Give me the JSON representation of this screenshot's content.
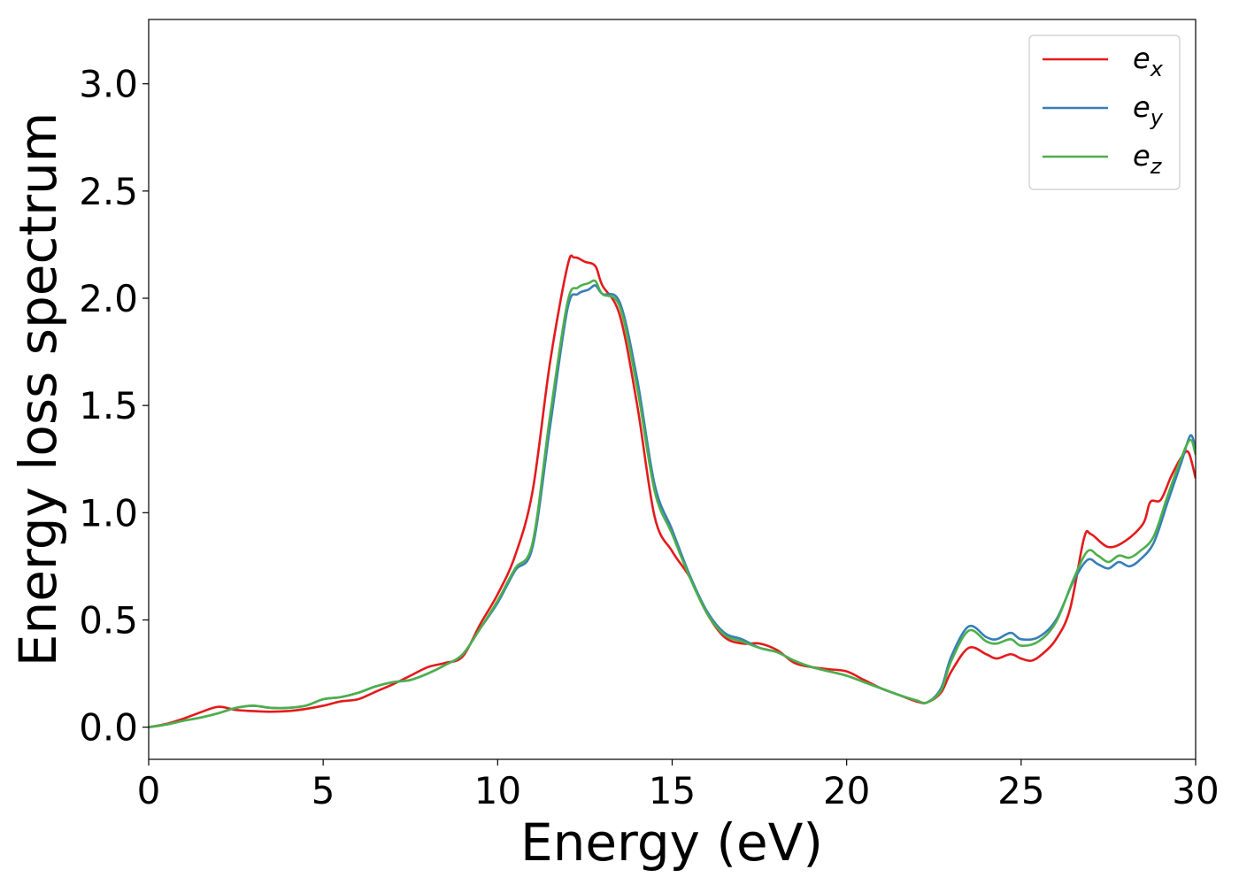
{
  "chart_data": {
    "type": "line",
    "title": "",
    "xlabel": "Energy (eV)",
    "ylabel": "Energy loss spectrum",
    "xlim": [
      0,
      30
    ],
    "ylim": [
      -0.15,
      3.3
    ],
    "xticks": [
      0,
      5,
      10,
      15,
      20,
      25,
      30
    ],
    "xtick_labels": [
      "0",
      "5",
      "10",
      "15",
      "20",
      "25",
      "30"
    ],
    "yticks": [
      0.0,
      0.5,
      1.0,
      1.5,
      2.0,
      2.5,
      3.0
    ],
    "ytick_labels": [
      "0.0",
      "0.5",
      "1.0",
      "1.5",
      "2.0",
      "2.5",
      "3.0"
    ],
    "grid": false,
    "legend_position": "top-right",
    "series": [
      {
        "name": "e_x",
        "legend_base": "e",
        "legend_sub": "x",
        "color": "#e41a1c",
        "points": [
          [
            0,
            0
          ],
          [
            0.5,
            0.015
          ],
          [
            1,
            0.04
          ],
          [
            1.5,
            0.07
          ],
          [
            2,
            0.095
          ],
          [
            2.5,
            0.08
          ],
          [
            3,
            0.075
          ],
          [
            3.5,
            0.072
          ],
          [
            4,
            0.075
          ],
          [
            4.5,
            0.085
          ],
          [
            5,
            0.1
          ],
          [
            5.5,
            0.12
          ],
          [
            6,
            0.13
          ],
          [
            6.5,
            0.165
          ],
          [
            7,
            0.2
          ],
          [
            7.5,
            0.24
          ],
          [
            8,
            0.28
          ],
          [
            8.5,
            0.3
          ],
          [
            9,
            0.33
          ],
          [
            9.5,
            0.48
          ],
          [
            10,
            0.62
          ],
          [
            10.5,
            0.8
          ],
          [
            11,
            1.1
          ],
          [
            11.5,
            1.7
          ],
          [
            12,
            2.15
          ],
          [
            12.2,
            2.19
          ],
          [
            12.5,
            2.17
          ],
          [
            12.8,
            2.15
          ],
          [
            13,
            2.06
          ],
          [
            13.5,
            1.92
          ],
          [
            14,
            1.5
          ],
          [
            14.5,
            0.98
          ],
          [
            15,
            0.82
          ],
          [
            15.5,
            0.7
          ],
          [
            16,
            0.53
          ],
          [
            16.5,
            0.42
          ],
          [
            17,
            0.39
          ],
          [
            17.5,
            0.39
          ],
          [
            18,
            0.36
          ],
          [
            18.5,
            0.3
          ],
          [
            19,
            0.28
          ],
          [
            19.5,
            0.27
          ],
          [
            20,
            0.26
          ],
          [
            20.5,
            0.22
          ],
          [
            21,
            0.18
          ],
          [
            21.5,
            0.15
          ],
          [
            22,
            0.12
          ],
          [
            22.3,
            0.115
          ],
          [
            22.7,
            0.16
          ],
          [
            23,
            0.26
          ],
          [
            23.5,
            0.37
          ],
          [
            24,
            0.34
          ],
          [
            24.3,
            0.32
          ],
          [
            24.7,
            0.34
          ],
          [
            25,
            0.32
          ],
          [
            25.3,
            0.31
          ],
          [
            25.6,
            0.34
          ],
          [
            26,
            0.41
          ],
          [
            26.4,
            0.55
          ],
          [
            26.8,
            0.88
          ],
          [
            27,
            0.9
          ],
          [
            27.5,
            0.84
          ],
          [
            28,
            0.87
          ],
          [
            28.5,
            0.95
          ],
          [
            28.7,
            1.05
          ],
          [
            29,
            1.06
          ],
          [
            29.3,
            1.17
          ],
          [
            29.6,
            1.26
          ],
          [
            29.8,
            1.28
          ],
          [
            30,
            1.16
          ]
        ]
      },
      {
        "name": "e_y",
        "legend_base": "e",
        "legend_sub": "y",
        "color": "#377eb8",
        "points": [
          [
            0,
            0
          ],
          [
            0.5,
            0.012
          ],
          [
            1,
            0.03
          ],
          [
            1.5,
            0.045
          ],
          [
            2,
            0.065
          ],
          [
            2.5,
            0.09
          ],
          [
            3,
            0.1
          ],
          [
            3.5,
            0.09
          ],
          [
            4,
            0.09
          ],
          [
            4.5,
            0.1
          ],
          [
            5,
            0.13
          ],
          [
            5.5,
            0.14
          ],
          [
            6,
            0.16
          ],
          [
            6.5,
            0.19
          ],
          [
            7,
            0.21
          ],
          [
            7.5,
            0.22
          ],
          [
            8,
            0.25
          ],
          [
            8.5,
            0.29
          ],
          [
            9,
            0.34
          ],
          [
            9.5,
            0.46
          ],
          [
            10,
            0.58
          ],
          [
            10.5,
            0.73
          ],
          [
            11,
            0.84
          ],
          [
            11.5,
            1.4
          ],
          [
            12,
            1.95
          ],
          [
            12.3,
            2.02
          ],
          [
            12.6,
            2.04
          ],
          [
            12.8,
            2.06
          ],
          [
            13,
            2.02
          ],
          [
            13.5,
            1.98
          ],
          [
            14,
            1.62
          ],
          [
            14.5,
            1.13
          ],
          [
            15,
            0.92
          ],
          [
            15.5,
            0.71
          ],
          [
            16,
            0.54
          ],
          [
            16.5,
            0.44
          ],
          [
            17,
            0.41
          ],
          [
            17.5,
            0.37
          ],
          [
            18,
            0.35
          ],
          [
            18.5,
            0.31
          ],
          [
            19,
            0.28
          ],
          [
            19.5,
            0.26
          ],
          [
            20,
            0.24
          ],
          [
            20.5,
            0.21
          ],
          [
            21,
            0.18
          ],
          [
            21.5,
            0.15
          ],
          [
            22,
            0.125
          ],
          [
            22.3,
            0.115
          ],
          [
            22.7,
            0.18
          ],
          [
            23,
            0.33
          ],
          [
            23.5,
            0.47
          ],
          [
            24,
            0.42
          ],
          [
            24.3,
            0.41
          ],
          [
            24.7,
            0.44
          ],
          [
            25,
            0.41
          ],
          [
            25.5,
            0.42
          ],
          [
            26,
            0.5
          ],
          [
            26.5,
            0.68
          ],
          [
            26.9,
            0.78
          ],
          [
            27.2,
            0.76
          ],
          [
            27.5,
            0.74
          ],
          [
            27.8,
            0.77
          ],
          [
            28.1,
            0.75
          ],
          [
            28.4,
            0.78
          ],
          [
            28.8,
            0.86
          ],
          [
            29.2,
            1.05
          ],
          [
            29.6,
            1.24
          ],
          [
            29.85,
            1.36
          ],
          [
            30,
            1.3
          ]
        ]
      },
      {
        "name": "e_z",
        "legend_base": "e",
        "legend_sub": "z",
        "color": "#4daf4a",
        "points": [
          [
            0,
            0
          ],
          [
            0.5,
            0.012
          ],
          [
            1,
            0.03
          ],
          [
            1.5,
            0.045
          ],
          [
            2,
            0.065
          ],
          [
            2.5,
            0.09
          ],
          [
            3,
            0.1
          ],
          [
            3.5,
            0.09
          ],
          [
            4,
            0.09
          ],
          [
            4.5,
            0.1
          ],
          [
            5,
            0.13
          ],
          [
            5.5,
            0.14
          ],
          [
            6,
            0.16
          ],
          [
            6.5,
            0.19
          ],
          [
            7,
            0.21
          ],
          [
            7.5,
            0.22
          ],
          [
            8,
            0.25
          ],
          [
            8.5,
            0.29
          ],
          [
            9,
            0.34
          ],
          [
            9.5,
            0.46
          ],
          [
            10,
            0.59
          ],
          [
            10.5,
            0.74
          ],
          [
            11,
            0.86
          ],
          [
            11.5,
            1.45
          ],
          [
            12,
            1.98
          ],
          [
            12.3,
            2.05
          ],
          [
            12.6,
            2.07
          ],
          [
            12.8,
            2.08
          ],
          [
            13,
            2.02
          ],
          [
            13.5,
            1.96
          ],
          [
            14,
            1.58
          ],
          [
            14.5,
            1.1
          ],
          [
            15,
            0.9
          ],
          [
            15.5,
            0.7
          ],
          [
            16,
            0.53
          ],
          [
            16.5,
            0.43
          ],
          [
            17,
            0.4
          ],
          [
            17.5,
            0.37
          ],
          [
            18,
            0.35
          ],
          [
            18.5,
            0.31
          ],
          [
            19,
            0.28
          ],
          [
            19.5,
            0.26
          ],
          [
            20,
            0.24
          ],
          [
            20.5,
            0.21
          ],
          [
            21,
            0.18
          ],
          [
            21.5,
            0.15
          ],
          [
            22,
            0.125
          ],
          [
            22.3,
            0.115
          ],
          [
            22.7,
            0.17
          ],
          [
            23,
            0.31
          ],
          [
            23.5,
            0.45
          ],
          [
            24,
            0.4
          ],
          [
            24.3,
            0.39
          ],
          [
            24.7,
            0.41
          ],
          [
            25,
            0.38
          ],
          [
            25.5,
            0.4
          ],
          [
            26,
            0.49
          ],
          [
            26.5,
            0.69
          ],
          [
            26.9,
            0.82
          ],
          [
            27.2,
            0.8
          ],
          [
            27.5,
            0.77
          ],
          [
            27.8,
            0.8
          ],
          [
            28.1,
            0.79
          ],
          [
            28.4,
            0.82
          ],
          [
            28.8,
            0.89
          ],
          [
            29.2,
            1.08
          ],
          [
            29.6,
            1.26
          ],
          [
            29.85,
            1.34
          ],
          [
            30,
            1.27
          ]
        ]
      }
    ]
  }
}
